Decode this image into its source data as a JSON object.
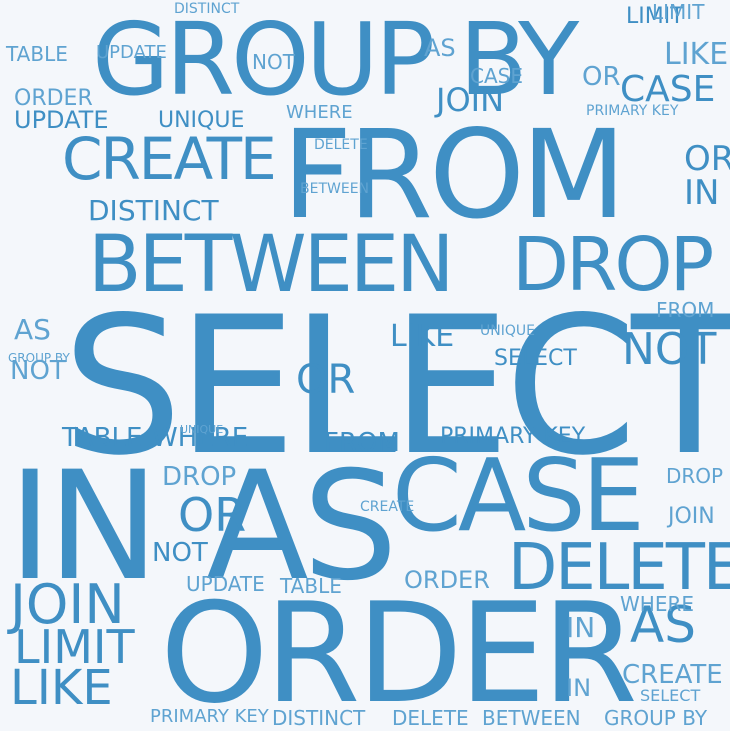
{
  "colors": {
    "background": "#f4f7fb",
    "word": "#3f8fc4",
    "word_light": "#5fa3d1"
  },
  "words": [
    {
      "text": "SELECT",
      "weight": 1.0
    },
    {
      "text": "ORDER",
      "weight": 0.78
    },
    {
      "text": "IN",
      "weight": 0.8
    },
    {
      "text": "AS",
      "weight": 0.8
    },
    {
      "text": "FROM",
      "weight": 0.7
    },
    {
      "text": "GROUP BY",
      "weight": 0.62
    },
    {
      "text": "CASE",
      "weight": 0.56
    },
    {
      "text": "BETWEEN",
      "weight": 0.46
    },
    {
      "text": "DROP",
      "weight": 0.44
    },
    {
      "text": "DELETE",
      "weight": 0.4
    },
    {
      "text": "CREATE",
      "weight": 0.36
    },
    {
      "text": "JOIN",
      "weight": 0.3
    },
    {
      "text": "LIKE",
      "weight": 0.26
    },
    {
      "text": "LIMIT",
      "weight": 0.24
    },
    {
      "text": "OR",
      "weight": 0.24
    },
    {
      "text": "NOT",
      "weight": 0.22
    },
    {
      "text": "TABLE",
      "weight": 0.2
    },
    {
      "text": "WHERE",
      "weight": 0.2
    },
    {
      "text": "DISTINCT",
      "weight": 0.2
    },
    {
      "text": "UPDATE",
      "weight": 0.18
    },
    {
      "text": "UNIQUE",
      "weight": 0.16
    },
    {
      "text": "PRIMARY KEY",
      "weight": 0.16
    },
    {
      "text": "LIMIT",
      "weight": 0.16
    },
    {
      "text": "OR",
      "weight": 0.16
    },
    {
      "text": "IN",
      "weight": 0.16
    },
    {
      "text": "AS",
      "weight": 0.15
    },
    {
      "text": "FROM",
      "weight": 0.14
    },
    {
      "text": "NOT",
      "weight": 0.14
    },
    {
      "text": "CASE",
      "weight": 0.13
    },
    {
      "text": "JOIN",
      "weight": 0.13
    },
    {
      "text": "OR",
      "weight": 0.12
    },
    {
      "text": "SELECT",
      "weight": 0.12
    },
    {
      "text": "LIKE",
      "weight": 0.12
    },
    {
      "text": "DROP",
      "weight": 0.11
    },
    {
      "text": "ORDER",
      "weight": 0.1
    },
    {
      "text": "UNIQUE",
      "weight": 0.1
    },
    {
      "text": "CREATE",
      "weight": 0.1
    },
    {
      "text": "WHERE",
      "weight": 0.1
    },
    {
      "text": "DELETE",
      "weight": 0.1
    },
    {
      "text": "TABLE",
      "weight": 0.1
    },
    {
      "text": "UPDATE",
      "weight": 0.1
    },
    {
      "text": "BETWEEN",
      "weight": 0.09
    },
    {
      "text": "GROUP BY",
      "weight": 0.09
    },
    {
      "text": "DISTINCT",
      "weight": 0.08
    },
    {
      "text": "PRIMARY KEY",
      "weight": 0.08
    },
    {
      "text": "IN",
      "weight": 0.08
    },
    {
      "text": "AS",
      "weight": 0.08
    },
    {
      "text": "NOT",
      "weight": 0.08
    },
    {
      "text": "LIMIT",
      "weight": 0.07
    },
    {
      "text": "SELECT",
      "weight": 0.07
    },
    {
      "text": "JOIN",
      "weight": 0.07
    },
    {
      "text": "CASE",
      "weight": 0.07
    },
    {
      "text": "FROM",
      "weight": 0.06
    },
    {
      "text": "ORDER",
      "weight": 0.06
    },
    {
      "text": "LIKE",
      "weight": 0.06
    },
    {
      "text": "DROP",
      "weight": 0.06
    },
    {
      "text": "WHERE",
      "weight": 0.05
    },
    {
      "text": "UNIQUE",
      "weight": 0.05
    },
    {
      "text": "TABLE",
      "weight": 0.05
    },
    {
      "text": "DELETE",
      "weight": 0.05
    },
    {
      "text": "CREATE",
      "weight": 0.05
    },
    {
      "text": "UPDATE",
      "weight": 0.05
    },
    {
      "text": "BETWEEN",
      "weight": 0.04
    },
    {
      "text": "DISTINCT",
      "weight": 0.04
    },
    {
      "text": "GROUP BY",
      "weight": 0.04
    },
    {
      "text": "PRIMARY KEY",
      "weight": 0.04
    },
    {
      "text": "OR",
      "weight": 0.04
    },
    {
      "text": "IN",
      "weight": 0.04
    },
    {
      "text": "NOT",
      "weight": 0.04
    },
    {
      "text": "AS",
      "weight": 0.04
    }
  ]
}
